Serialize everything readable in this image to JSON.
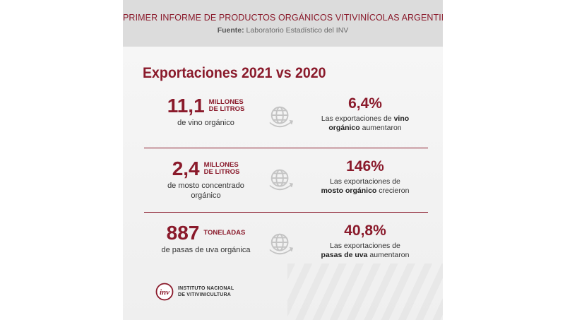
{
  "header": {
    "title": "PRIMER INFORME DE PRODUCTOS ORGÁNICOS VITIVINÍCOLAS ARGENTINOS",
    "source_label": "Fuente:",
    "source_text": "Laboratorio Estadístico del INV"
  },
  "section_title": "Exportaciones 2021 vs 2020",
  "rows": [
    {
      "value": "11,1",
      "unit_line1": "MILLONES",
      "unit_line2": "DE LITROS",
      "desc_line1": "de vino orgánico",
      "desc_line2": "",
      "pct": "6,4%",
      "r_line1_a": "Las exportaciones de ",
      "r_line1_b": "vino",
      "r_line2_a": "orgánico",
      "r_line2_b": " aumentaron"
    },
    {
      "value": "2,4",
      "unit_line1": "MILLONES",
      "unit_line2": "DE LITROS",
      "desc_line1": "de mosto concentrado",
      "desc_line2": "orgánico",
      "pct": "146%",
      "r_line1_a": "Las exportaciones de",
      "r_line1_b": "",
      "r_line2_a": "mosto orgánico",
      "r_line2_b": " crecieron"
    },
    {
      "value": "887",
      "unit_line1": "TONELADAS",
      "unit_line2": "",
      "desc_line1": "de pasas de uva orgánica",
      "desc_line2": "",
      "pct": "40,8%",
      "r_line1_a": "Las exportaciones de",
      "r_line1_b": "",
      "r_line2_a": "pasas de uva",
      "r_line2_b": " aumentaron"
    }
  ],
  "logo": {
    "mark": "inv",
    "line1": "INSTITUTO NACIONAL",
    "line2": "DE VITIVINICULTURA"
  },
  "colors": {
    "accent": "#8a1a2b",
    "header_bg": "#dcdcdc",
    "icon": "#c4c4c4"
  },
  "icons": [
    "globe-arrow-icon",
    "inv-logo-icon"
  ]
}
